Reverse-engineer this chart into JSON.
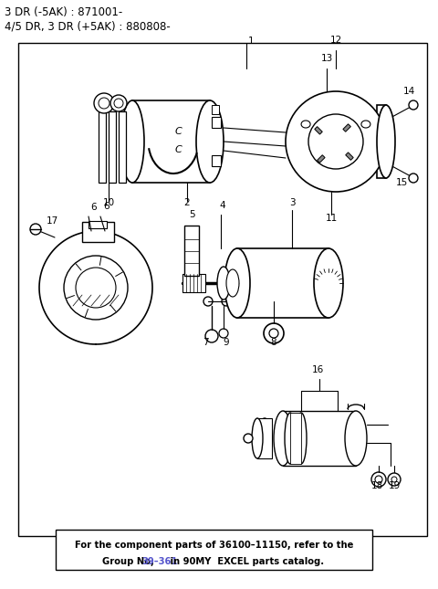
{
  "title_line1": "3 DR (-5AK) : 871001-",
  "title_line2": "4/5 DR, 3 DR (+5AK) : 880808-",
  "footer_line1": "For the component parts of 36100–11150, refer to the",
  "footer_line2_black1": "Group No, ",
  "footer_line2_blue": "39–361",
  "footer_line2_black2": " in 90MY  EXCEL parts catalog.",
  "bg_color": "#ffffff"
}
